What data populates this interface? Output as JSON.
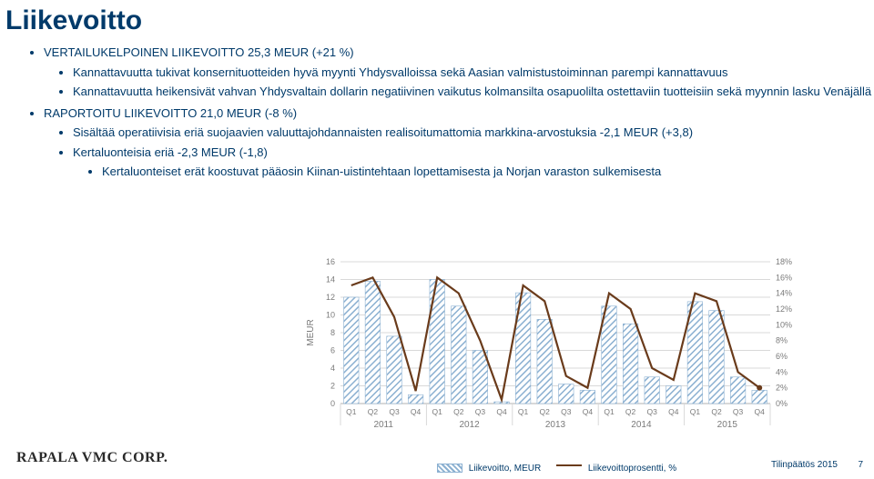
{
  "title": "Liikevoitto",
  "bullets": {
    "l1": "VERTAILUKELPOINEN LIIKEVOITTO 25,3 MEUR (+21 %)",
    "l1a": "Kannattavuutta tukivat konsernituotteiden hyvä myynti Yhdysvalloissa sekä Aasian valmistustoiminnan parempi kannattavuus",
    "l1b": "Kannattavuutta heikensivät vahvan Yhdysvaltain dollarin negatiivinen vaikutus kolmansilta osapuolilta ostettaviin tuotteisiin sekä myynnin lasku Venäjällä",
    "l2": "RAPORTOITU LIIKEVOITTO 21,0 MEUR (-8 %)",
    "l2a": "Sisältää operatiivisia eriä suojaavien valuuttajohdannaisten realisoitumattomia markkina-arvostuksia -2,1 MEUR (+3,8)",
    "l2b": "Kertaluonteisia eriä -2,3 MEUR (-1,8)",
    "l2b1": "Kertaluonteiset erät koostuvat pääosin Kiinan-uistintehtaan lopettamisesta ja Norjan varaston sulkemisesta"
  },
  "chart": {
    "type": "bar+line",
    "title": "",
    "y1_label": "MEUR",
    "y1_min": 0,
    "y1_max": 16,
    "y1_step": 2,
    "y2_min": 0,
    "y2_max": 18,
    "y2_step": 2,
    "y2_suffix": "%",
    "background_color": "#ffffff",
    "grid_color": "#d9d9d9",
    "axis_color": "#b0b0b0",
    "text_color": "#7a7a7a",
    "bar_fill": "#8bb0d1",
    "bar_fill_hatch": true,
    "line_color": "#6a3b1b",
    "bar_width_rel": 0.7,
    "groups": [
      {
        "year": "2011",
        "quarters": [
          "Q1",
          "Q2",
          "Q3",
          "Q4"
        ]
      },
      {
        "year": "2012",
        "quarters": [
          "Q1",
          "Q2",
          "Q3",
          "Q4"
        ]
      },
      {
        "year": "2013",
        "quarters": [
          "Q1",
          "Q2",
          "Q3",
          "Q4"
        ]
      },
      {
        "year": "2014",
        "quarters": [
          "Q1",
          "Q2",
          "Q3",
          "Q4"
        ]
      },
      {
        "year": "2015",
        "quarters": [
          "Q1",
          "Q2",
          "Q3",
          "Q4"
        ]
      }
    ],
    "bars": [
      12.0,
      13.8,
      7.6,
      1.0,
      14.0,
      11.0,
      6.0,
      0.2,
      12.5,
      9.5,
      2.2,
      1.5,
      11.0,
      9.0,
      3.0,
      2.0,
      11.5,
      10.5,
      3.0,
      1.5
    ],
    "line": [
      15.0,
      16.0,
      11.0,
      1.6,
      16.0,
      14.0,
      8.0,
      0.5,
      15.0,
      13.0,
      3.5,
      2.0,
      14.0,
      12.0,
      4.5,
      3.0,
      14.0,
      13.0,
      4.0,
      2.0
    ]
  },
  "legend": {
    "bar_label": "Liikevoitto, MEUR",
    "line_label": "Liikevoittoprosentti, %"
  },
  "footer": {
    "corp": "RAPALA VMC CORP.",
    "note": "Tilinpäätös 2015",
    "page": "7"
  }
}
